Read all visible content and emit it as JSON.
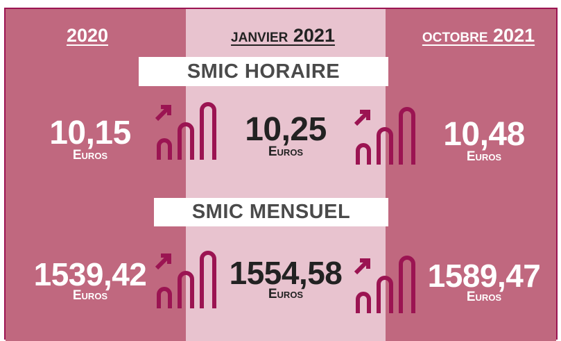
{
  "header": {
    "columns": [
      "2020",
      "janvier 2021",
      "octobre 2021"
    ]
  },
  "sections": [
    {
      "title": "SMIC HORAIRE",
      "values": [
        "10,15",
        "10,25",
        "10,48"
      ]
    },
    {
      "title": "SMIC MENSUEL",
      "values": [
        "1539,42",
        "1554,58",
        "1589,47"
      ]
    }
  ],
  "unit": "Euros"
}
